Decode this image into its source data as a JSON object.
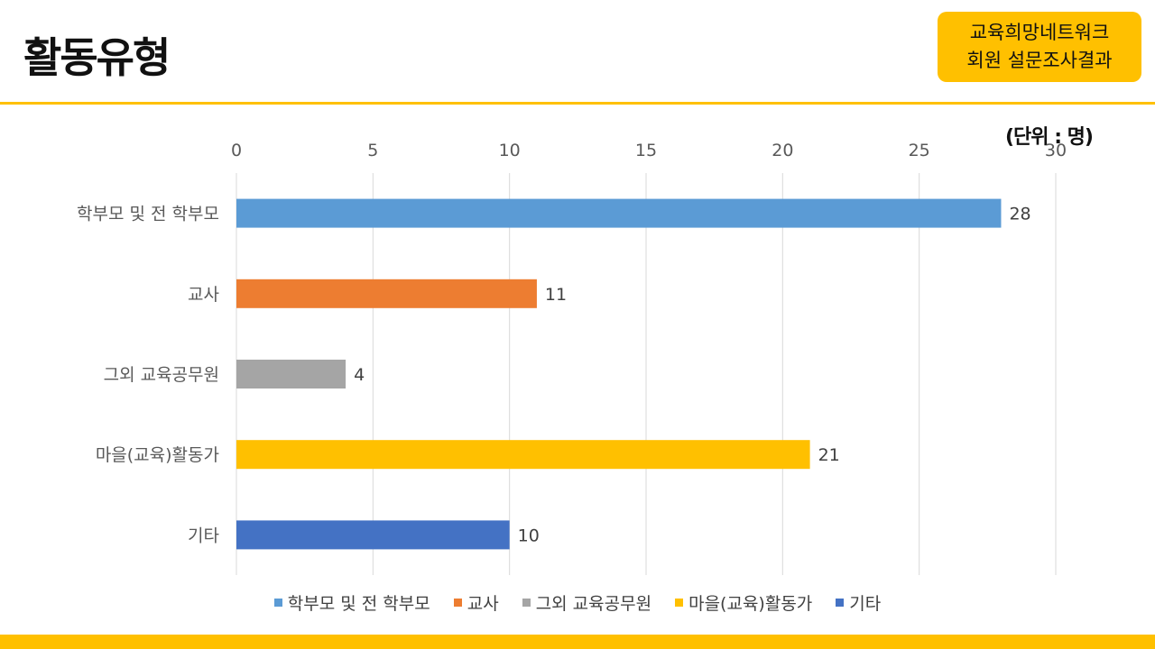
{
  "header": {
    "title": "활동유형",
    "badge_line1": "교육희망네트워크",
    "badge_line2": "회원 설문조사결과"
  },
  "chart_data": {
    "type": "bar",
    "orientation": "horizontal",
    "unit_label": "(단위 : 명)",
    "categories": [
      "학부모 및 전 학부모",
      "교사",
      "그외 교육공무원",
      "마을(교육)활동가",
      "기타"
    ],
    "values": [
      28,
      11,
      4,
      21,
      10
    ],
    "colors": [
      "#5B9BD5",
      "#ED7D31",
      "#A5A5A5",
      "#FFC000",
      "#4472C4"
    ],
    "xlim": [
      0,
      30
    ],
    "ticks": [
      0,
      5,
      10,
      15,
      20,
      25,
      30
    ],
    "grid": true,
    "data_labels": true,
    "legend_position": "bottom"
  }
}
